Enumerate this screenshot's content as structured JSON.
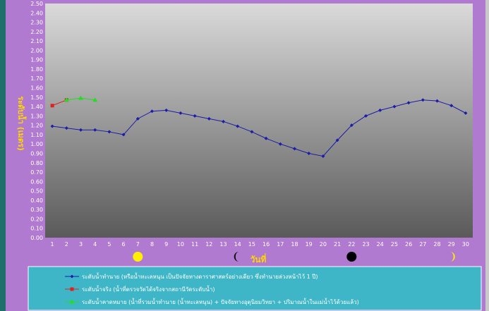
{
  "chart_data": {
    "type": "line",
    "ylabel": "ระดับน้ำ (เมตร)",
    "xlabel": "วันที่",
    "x": [
      1,
      2,
      3,
      4,
      5,
      6,
      7,
      8,
      9,
      10,
      11,
      12,
      13,
      14,
      15,
      16,
      17,
      18,
      19,
      20,
      21,
      22,
      23,
      24,
      25,
      26,
      27,
      28,
      29,
      30
    ],
    "ylim": [
      0,
      2.5
    ],
    "ytick_step": 0.1,
    "grid": false,
    "legend_position": "bottom",
    "series": [
      {
        "name": "ระดับน้ำทำนาย  (หรือน้ำทะเลหนุน  เป็นปัจจัยทางดาราศาสตร์อย่างเดียว  ซึ่งทำนายล่วงหน้าไว้ 1 ปี)",
        "color": "#1c1ca8",
        "marker": "diamond",
        "x": [
          1,
          2,
          3,
          4,
          5,
          6,
          7,
          8,
          9,
          10,
          11,
          12,
          13,
          14,
          15,
          16,
          17,
          18,
          19,
          20,
          21,
          22,
          23,
          24,
          25,
          26,
          27,
          28,
          29,
          30
        ],
        "y": [
          1.19,
          1.17,
          1.15,
          1.15,
          1.13,
          1.1,
          1.27,
          1.35,
          1.36,
          1.33,
          1.3,
          1.27,
          1.24,
          1.19,
          1.13,
          1.06,
          1.0,
          0.95,
          0.9,
          0.87,
          1.04,
          1.2,
          1.3,
          1.36,
          1.4,
          1.44,
          1.47,
          1.46,
          1.41,
          1.33
        ]
      },
      {
        "name": "ระดับน้ำจริง (น้ำที่ตรวจวัดได้จริงจากสถานีวัดระดับน้ำ)",
        "color": "#e02020",
        "marker": "square",
        "x": [
          1,
          2
        ],
        "y": [
          1.41,
          1.47
        ]
      },
      {
        "name": "ระดับน้ำคาดหมาย (น้ำที่รวมน้ำทำนาย (น้ำทะเลหนุน) + ปัจจัยทางอุตุนิยมวิทยา + ปริมาณน้ำในแม่น้ำไว้ด้วยแล้ว)",
        "color": "#22dd22",
        "marker": "triangle",
        "x": [
          2,
          3,
          4
        ],
        "y": [
          1.47,
          1.49,
          1.47
        ]
      }
    ],
    "moon_phases": [
      {
        "x": 7,
        "phase": "full-moon-icon",
        "color": "#ffee00"
      },
      {
        "x": 14,
        "phase": "last-quarter-moon-icon",
        "color": "#000000"
      },
      {
        "x": 22,
        "phase": "new-moon-icon",
        "color": "#000000"
      },
      {
        "x": 29,
        "phase": "first-quarter-moon-icon",
        "color": "#ffee00"
      }
    ]
  },
  "colors": {
    "frame": "#b07ad0",
    "plot_top": "#dadada",
    "plot_bottom": "#5a5a5a",
    "tick_text": "#ffffff",
    "ylabel_color": "#ffd400",
    "xlabel_color": "#ffd400",
    "legend_bg": "#3fb6c7",
    "legend_text": "#ffffff"
  }
}
